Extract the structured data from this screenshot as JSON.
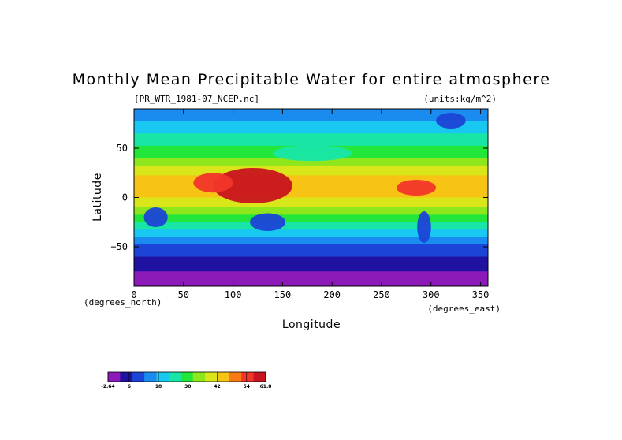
{
  "chart_data": {
    "type": "heatmap",
    "title": "Monthly Mean Precipitable Water for entire atmosphere",
    "file_label": "[PR_WTR_1981-07_NCEP.nc]",
    "units_label": "(units:kg/m^2)",
    "xlabel": "Longitude",
    "ylabel": "Latitude",
    "x_unit_label": "(degrees_east)",
    "y_unit_label": "(degrees_north)",
    "xlim": [
      0,
      357.5
    ],
    "ylim": [
      -90,
      90
    ],
    "x_ticks": [
      "0",
      "50",
      "100",
      "150",
      "200",
      "250",
      "300",
      "350"
    ],
    "y_ticks": [
      "50",
      "0",
      "−50"
    ],
    "colorbar": {
      "min": -2.64,
      "max": 61.8,
      "tick_labels": [
        "-2.64",
        "6",
        "18",
        "30",
        "42",
        "54",
        "61.8"
      ],
      "colors": [
        "#8b1ab9",
        "#2012a0",
        "#1c44d6",
        "#1a8cf0",
        "#19c8f0",
        "#19e6a6",
        "#22e63a",
        "#8ee61c",
        "#d8e61a",
        "#f7c416",
        "#f77a16",
        "#f2362a",
        "#c8141e"
      ]
    },
    "z_bands_by_latitude": [
      {
        "lat": 90,
        "value": 14
      },
      {
        "lat": 75,
        "value": 18
      },
      {
        "lat": 60,
        "value": 24
      },
      {
        "lat": 45,
        "value": 30
      },
      {
        "lat": 30,
        "value": 38
      },
      {
        "lat": 15,
        "value": 46
      },
      {
        "lat": 0,
        "value": 42
      },
      {
        "lat": -15,
        "value": 34
      },
      {
        "lat": -30,
        "value": 24
      },
      {
        "lat": -45,
        "value": 14
      },
      {
        "lat": -55,
        "value": 9
      },
      {
        "lat": -65,
        "value": 5
      },
      {
        "lat": -75,
        "value": 2
      },
      {
        "lat": -90,
        "value": 0
      }
    ]
  }
}
